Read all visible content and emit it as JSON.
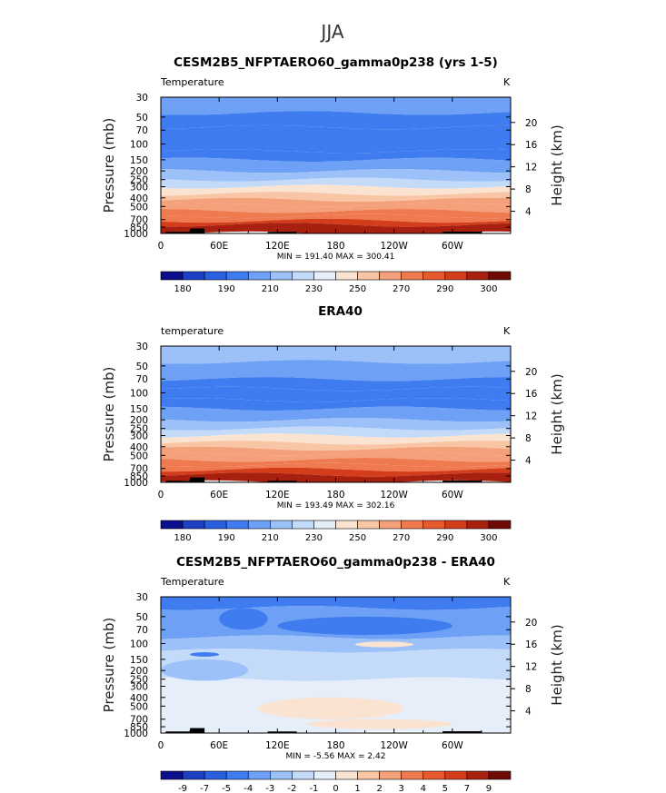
{
  "figure_title": "JJA",
  "chart_data": [
    {
      "type": "contour",
      "title": "CESM2B5_NFPTAERO60_gamma0p238 (yrs 1-5)",
      "left_label": "Temperature",
      "right_label": "K",
      "xlabel": "",
      "ylabel": "Pressure (mb)",
      "ylabel_right": "Height (km)",
      "x_ticks": [
        "0",
        "60E",
        "120E",
        "180",
        "120W",
        "60W"
      ],
      "x_tick_values": [
        0,
        60,
        120,
        180,
        240,
        300
      ],
      "xlim": [
        0,
        360
      ],
      "y_ticks": [
        30,
        50,
        70,
        100,
        150,
        200,
        250,
        300,
        400,
        500,
        700,
        850,
        1000
      ],
      "ylim": [
        1000,
        30
      ],
      "y_right_ticks": [
        20,
        16,
        12,
        8,
        4
      ],
      "stats": "MIN = 191.40   MAX = 300.41",
      "levels": [
        180,
        190,
        210,
        230,
        250,
        270,
        290,
        300
      ],
      "bands": [
        {
          "p_top": 30,
          "p_bot": 45,
          "value": 210
        },
        {
          "p_top": 45,
          "p_bot": 65,
          "value": 205
        },
        {
          "p_top": 65,
          "p_bot": 120,
          "value": 200
        },
        {
          "p_top": 120,
          "p_bot": 150,
          "value": 205
        },
        {
          "p_top": 150,
          "p_bot": 200,
          "value": 210
        },
        {
          "p_top": 200,
          "p_bot": 250,
          "value": 220
        },
        {
          "p_top": 250,
          "p_bot": 300,
          "value": 230
        },
        {
          "p_top": 300,
          "p_bot": 360,
          "value": 240
        },
        {
          "p_top": 360,
          "p_bot": 420,
          "value": 250
        },
        {
          "p_top": 420,
          "p_bot": 480,
          "value": 255
        },
        {
          "p_top": 480,
          "p_bot": 560,
          "value": 260
        },
        {
          "p_top": 560,
          "p_bot": 640,
          "value": 265
        },
        {
          "p_top": 640,
          "p_bot": 720,
          "value": 270
        },
        {
          "p_top": 720,
          "p_bot": 800,
          "value": 280
        },
        {
          "p_top": 800,
          "p_bot": 1000,
          "value": 290
        }
      ]
    },
    {
      "type": "contour",
      "title": "ERA40",
      "left_label": "temperature",
      "right_label": "K",
      "xlabel": "",
      "ylabel": "Pressure (mb)",
      "ylabel_right": "Height (km)",
      "x_ticks": [
        "0",
        "60E",
        "120E",
        "180",
        "120W",
        "60W"
      ],
      "x_tick_values": [
        0,
        60,
        120,
        180,
        240,
        300
      ],
      "xlim": [
        0,
        360
      ],
      "y_ticks": [
        30,
        50,
        70,
        100,
        150,
        200,
        250,
        300,
        400,
        500,
        700,
        850,
        1000
      ],
      "ylim": [
        1000,
        30
      ],
      "y_right_ticks": [
        20,
        16,
        12,
        8,
        4
      ],
      "stats": "MIN = 193.49   MAX = 302.16",
      "levels": [
        180,
        190,
        210,
        230,
        250,
        270,
        290,
        300
      ],
      "bands": [
        {
          "p_top": 30,
          "p_bot": 45,
          "value": 215
        },
        {
          "p_top": 45,
          "p_bot": 70,
          "value": 210
        },
        {
          "p_top": 70,
          "p_bot": 90,
          "value": 205
        },
        {
          "p_top": 90,
          "p_bot": 120,
          "value": 200
        },
        {
          "p_top": 120,
          "p_bot": 150,
          "value": 205
        },
        {
          "p_top": 150,
          "p_bot": 200,
          "value": 210
        },
        {
          "p_top": 200,
          "p_bot": 250,
          "value": 220
        },
        {
          "p_top": 250,
          "p_bot": 300,
          "value": 230
        },
        {
          "p_top": 300,
          "p_bot": 360,
          "value": 240
        },
        {
          "p_top": 360,
          "p_bot": 420,
          "value": 250
        },
        {
          "p_top": 420,
          "p_bot": 480,
          "value": 255
        },
        {
          "p_top": 480,
          "p_bot": 560,
          "value": 260
        },
        {
          "p_top": 560,
          "p_bot": 640,
          "value": 265
        },
        {
          "p_top": 640,
          "p_bot": 720,
          "value": 270
        },
        {
          "p_top": 720,
          "p_bot": 820,
          "value": 280
        },
        {
          "p_top": 820,
          "p_bot": 1000,
          "value": 290
        }
      ]
    },
    {
      "type": "contour",
      "title": "CESM2B5_NFPTAERO60_gamma0p238 - ERA40",
      "left_label": "Temperature",
      "right_label": "K",
      "xlabel": "",
      "ylabel": "Pressure (mb)",
      "ylabel_right": "Height (km)",
      "x_ticks": [
        "0",
        "60E",
        "120E",
        "180",
        "120W",
        "60W"
      ],
      "x_tick_values": [
        0,
        60,
        120,
        180,
        240,
        300
      ],
      "xlim": [
        0,
        360
      ],
      "y_ticks": [
        30,
        50,
        70,
        100,
        150,
        200,
        250,
        300,
        400,
        500,
        700,
        850,
        1000
      ],
      "ylim": [
        1000,
        30
      ],
      "y_right_ticks": [
        20,
        16,
        12,
        8,
        4
      ],
      "stats": "MIN =   -5.56   MAX =    2.42",
      "levels": [
        -9,
        -7,
        -5,
        -4,
        -3,
        -2,
        -1,
        0,
        1,
        2,
        3,
        4,
        5,
        7,
        9
      ],
      "bands": [
        {
          "p_top": 30,
          "p_bot": 40,
          "value": -4.5
        },
        {
          "p_top": 40,
          "p_bot": 85,
          "value": -3.5
        },
        {
          "p_top": 85,
          "p_bot": 120,
          "value": -2.5
        },
        {
          "p_top": 120,
          "p_bot": 250,
          "value": -1.5
        },
        {
          "p_top": 250,
          "p_bot": 1000,
          "value": -0.5
        }
      ],
      "patches": [
        {
          "lon": [
            120,
            300
          ],
          "p": [
            50,
            80
          ],
          "value": -4.5
        },
        {
          "lon": [
            60,
            110
          ],
          "p": [
            40,
            70
          ],
          "value": -4.5
        },
        {
          "lon": [
            200,
            260
          ],
          "p": [
            95,
            110
          ],
          "value": 0.5
        },
        {
          "lon": [
            30,
            60
          ],
          "p": [
            125,
            140
          ],
          "value": -4.5
        },
        {
          "lon": [
            100,
            250
          ],
          "p": [
            400,
            700
          ],
          "value": 0.5
        },
        {
          "lon": [
            0,
            90
          ],
          "p": [
            150,
            260
          ],
          "value": -2.5
        },
        {
          "lon": [
            150,
            300
          ],
          "p": [
            700,
            900
          ],
          "value": 0.5
        }
      ]
    }
  ],
  "colorbars": [
    {
      "labels": [
        "180",
        "190",
        "210",
        "230",
        "250",
        "270",
        "290",
        "300"
      ]
    },
    {
      "labels": [
        "180",
        "190",
        "210",
        "230",
        "250",
        "270",
        "290",
        "300"
      ]
    },
    {
      "labels": [
        "-9",
        "-7",
        "-5",
        "-4",
        "-3",
        "-2",
        "-1",
        "0",
        "1",
        "2",
        "3",
        "4",
        "5",
        "7",
        "9"
      ]
    }
  ],
  "palette": [
    "#0a0f8c",
    "#1c3fc4",
    "#2a5fe0",
    "#3f7cf0",
    "#6ea0f5",
    "#9cc0f8",
    "#c4daf9",
    "#e6eef9",
    "#fbe3d2",
    "#f8c6a5",
    "#f4a07a",
    "#ef7a50",
    "#e85a2d",
    "#d43d1a",
    "#a82010",
    "#6e0b05"
  ]
}
